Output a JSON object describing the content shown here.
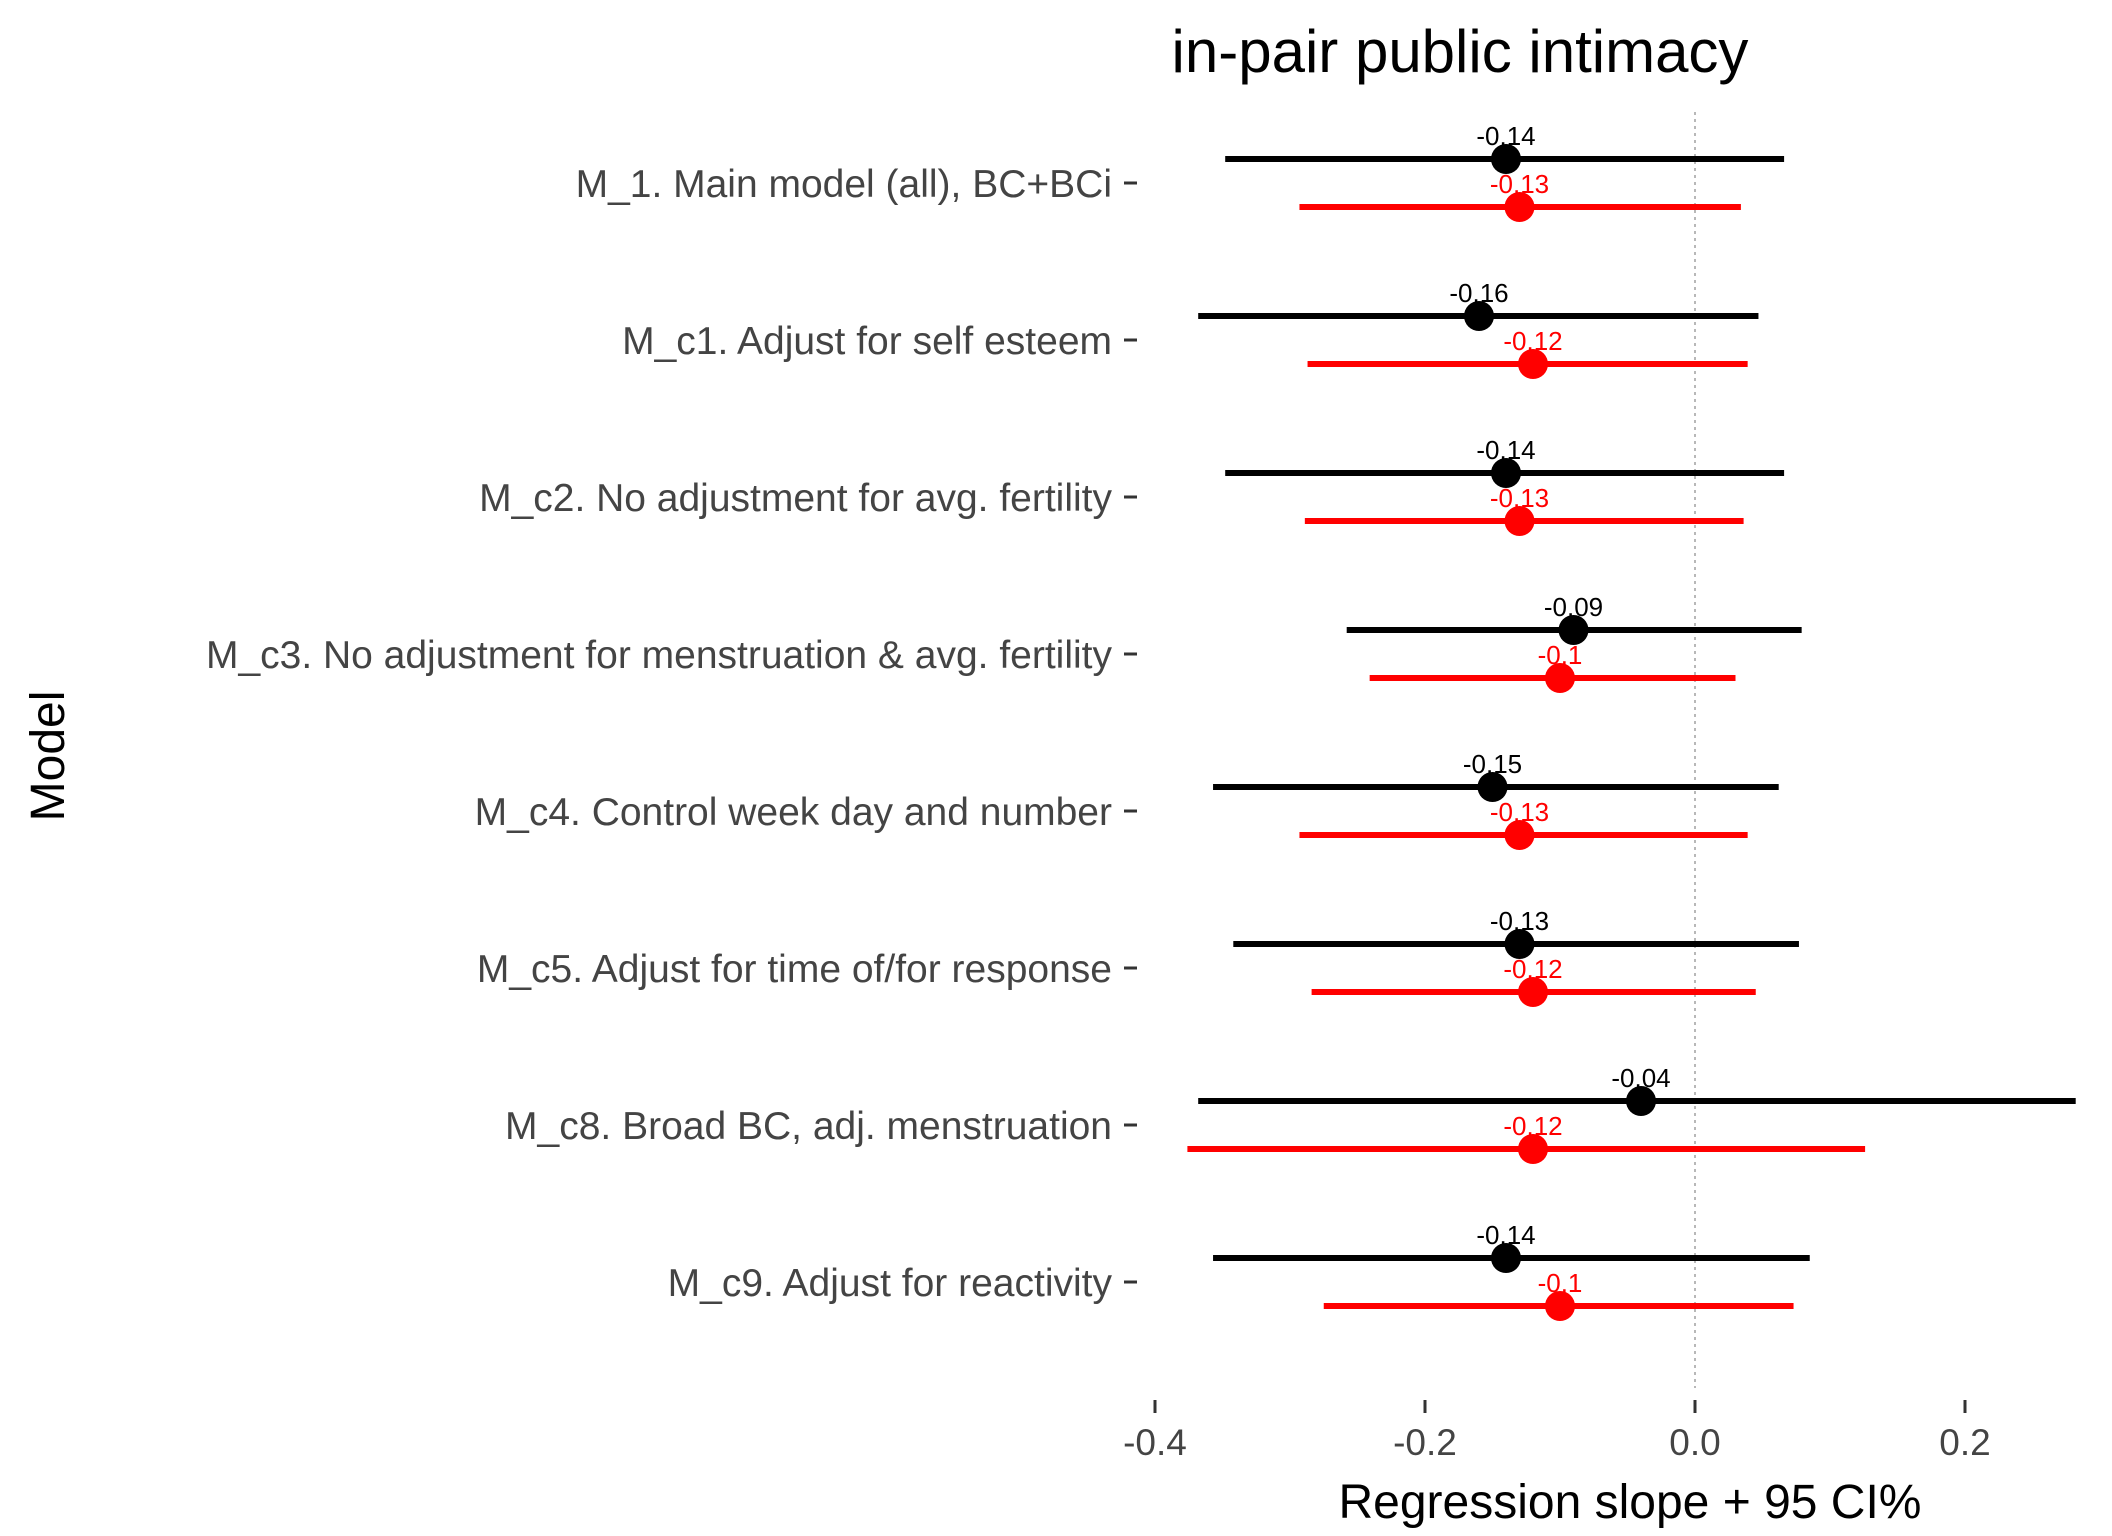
{
  "chart_data": {
    "type": "forest",
    "title": "in-pair public intimacy",
    "xlabel": "Regression slope + 95 CI%",
    "ylabel": "Model",
    "xlim": [
      -0.4,
      0.28
    ],
    "xticks": [
      -0.4,
      -0.2,
      0.0,
      0.2
    ],
    "xtick_labels": [
      "-0.4",
      "-0.2",
      "0.0",
      "0.2"
    ],
    "reference_line": 0.0,
    "grid": false,
    "legend": "none",
    "categories": [
      "M_1. Main model (all), BC+BCi",
      "M_c1. Adjust for self esteem",
      "M_c2. No adjustment for avg. fertility",
      "M_c3. No adjustment for menstruation & avg. fertility",
      "M_c4. Control week day and number",
      "M_c5. Adjust for time of/for response",
      "M_c8. Broad BC, adj. menstruation",
      "M_c9. Adjust for reactivity"
    ],
    "series": [
      {
        "color": "#000000",
        "estimates": [
          -0.14,
          -0.16,
          -0.14,
          -0.09,
          -0.15,
          -0.13,
          -0.04,
          -0.14
        ],
        "labels": [
          "-0.14",
          "-0.16",
          "-0.14",
          "-0.09",
          "-0.15",
          "-0.13",
          "-0.04",
          "-0.14"
        ],
        "ci_low": [
          -0.348,
          -0.368,
          -0.348,
          -0.258,
          -0.357,
          -0.342,
          -0.368,
          -0.357
        ],
        "ci_high": [
          0.066,
          0.047,
          0.066,
          0.079,
          0.062,
          0.077,
          0.282,
          0.085
        ]
      },
      {
        "color": "#ff0000",
        "estimates": [
          -0.13,
          -0.12,
          -0.13,
          -0.1,
          -0.13,
          -0.12,
          -0.12,
          -0.1
        ],
        "labels": [
          "-0.13",
          "-0.12",
          "-0.13",
          "-0.1",
          "-0.13",
          "-0.12",
          "-0.12",
          "-0.1"
        ],
        "ci_low": [
          -0.293,
          -0.287,
          -0.289,
          -0.241,
          -0.293,
          -0.284,
          -0.376,
          -0.275
        ],
        "ci_high": [
          0.034,
          0.039,
          0.036,
          0.03,
          0.039,
          0.045,
          0.126,
          0.073
        ]
      }
    ]
  }
}
